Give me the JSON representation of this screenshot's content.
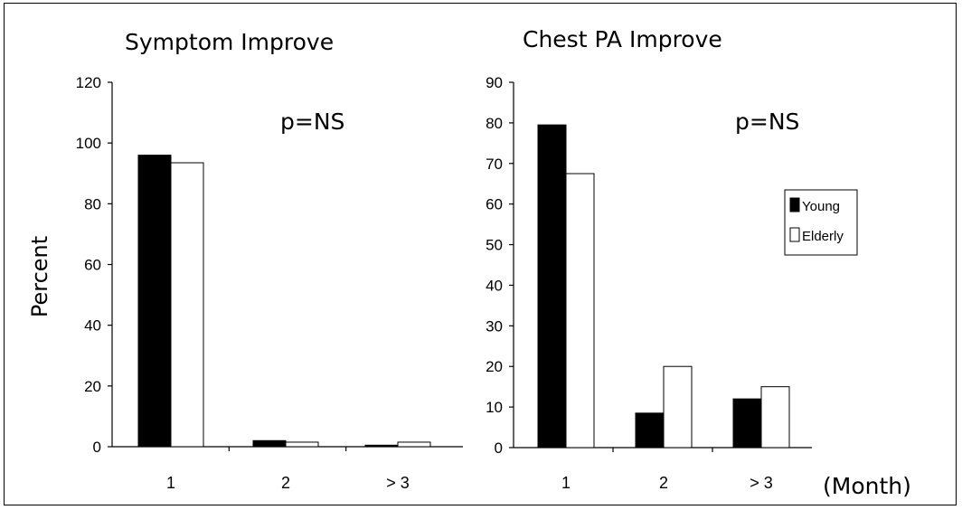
{
  "y_axis_label": "Percent",
  "x_unit_label": "(Month)",
  "legend": {
    "items": [
      {
        "label": "Young",
        "color": "#000000"
      },
      {
        "label": "Elderly",
        "color": "#ffffff"
      }
    ]
  },
  "chart_data": [
    {
      "type": "bar",
      "title": "Symptom Improve",
      "annotation": "p=NS",
      "ylabel": "Percent",
      "xlabel": "(Month)",
      "categories": [
        "1",
        "2",
        "> 3"
      ],
      "series": [
        {
          "name": "Young",
          "values": [
            96,
            2,
            0.5
          ]
        },
        {
          "name": "Elderly",
          "values": [
            93.5,
            1.5,
            1.5
          ]
        }
      ],
      "ylim": [
        0,
        120
      ],
      "yticks": [
        0,
        20,
        40,
        60,
        80,
        100,
        120
      ],
      "grid": false,
      "legend": "none"
    },
    {
      "type": "bar",
      "title": "Chest PA Improve",
      "annotation": "p=NS",
      "ylabel": "",
      "xlabel": "(Month)",
      "categories": [
        "1",
        "2",
        "> 3"
      ],
      "series": [
        {
          "name": "Young",
          "values": [
            79.5,
            8.5,
            12
          ]
        },
        {
          "name": "Elderly",
          "values": [
            67.5,
            20,
            15
          ]
        }
      ],
      "ylim": [
        0,
        90
      ],
      "yticks": [
        0,
        10,
        20,
        30,
        40,
        50,
        60,
        70,
        80,
        90
      ],
      "grid": false,
      "legend": "right"
    }
  ]
}
